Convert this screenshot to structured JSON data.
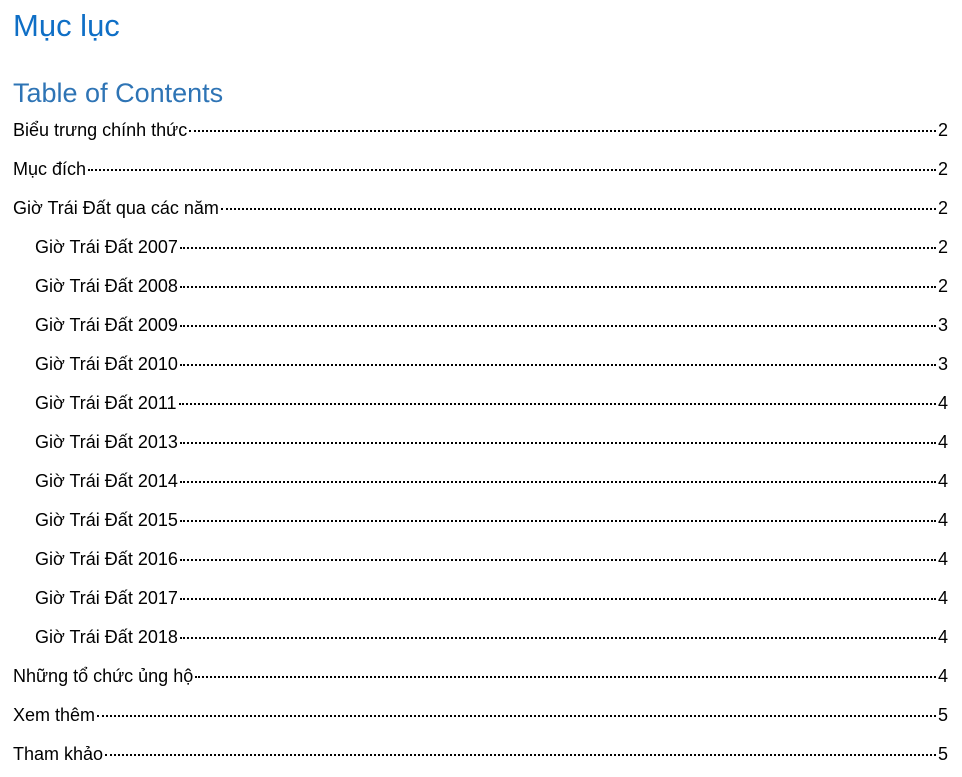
{
  "document": {
    "heading": "Mục lục",
    "toc_heading": "Table of Contents",
    "colors": {
      "heading": "#0f6fc6",
      "toc_heading": "#2e74b5"
    }
  },
  "toc": [
    {
      "title": "Biểu trưng chính thức",
      "page": "2",
      "level": 1
    },
    {
      "title": "Mục đích",
      "page": "2",
      "level": 1
    },
    {
      "title": "Giờ Trái Đất qua các năm",
      "page": "2",
      "level": 1
    },
    {
      "title": "Giờ Trái Đất 2007",
      "page": "2",
      "level": 2
    },
    {
      "title": "Giờ Trái Đất 2008",
      "page": "2",
      "level": 2
    },
    {
      "title": "Giờ Trái Đất 2009",
      "page": "3",
      "level": 2
    },
    {
      "title": "Giờ Trái Đất 2010",
      "page": "3",
      "level": 2
    },
    {
      "title": "Giờ Trái Đất 2011",
      "page": "4",
      "level": 2
    },
    {
      "title": "Giờ Trái Đất 2013",
      "page": "4",
      "level": 2
    },
    {
      "title": "Giờ Trái Đất 2014",
      "page": "4",
      "level": 2
    },
    {
      "title": "Giờ Trái Đất 2015",
      "page": "4",
      "level": 2
    },
    {
      "title": "Giờ Trái Đất 2016",
      "page": "4",
      "level": 2
    },
    {
      "title": "Giờ Trái Đất 2017",
      "page": "4",
      "level": 2
    },
    {
      "title": "Giờ Trái Đất 2018",
      "page": "4",
      "level": 2
    },
    {
      "title": "Những tổ chức ủng hộ",
      "page": "4",
      "level": 1
    },
    {
      "title": "Xem thêm",
      "page": "5",
      "level": 1
    },
    {
      "title": "Tham khảo",
      "page": "5",
      "level": 1
    }
  ]
}
